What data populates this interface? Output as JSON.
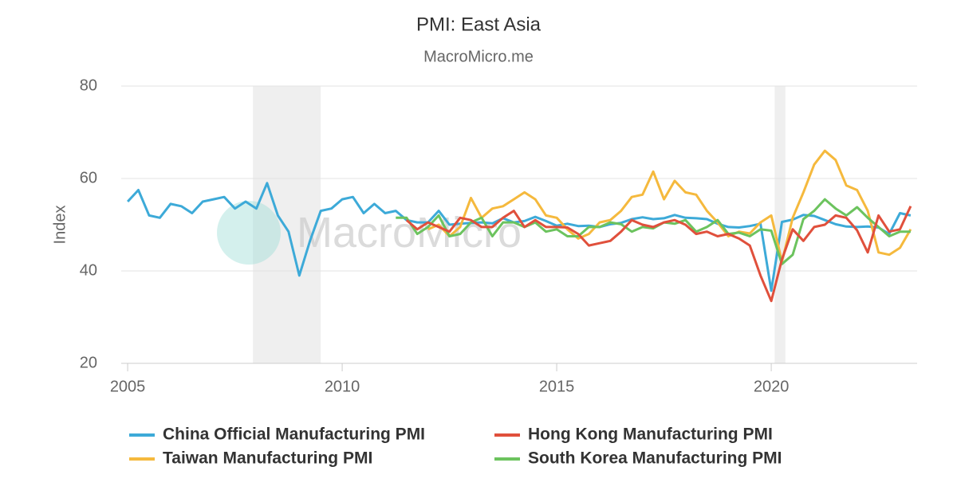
{
  "chart_data": {
    "type": "line",
    "title": "PMI: East Asia",
    "subtitle": "MacroMicro.me",
    "watermark": "MacroMicro",
    "y_label": "Index",
    "xlim": [
      2004.85,
      2023.4
    ],
    "ylim": [
      20,
      80
    ],
    "xticks": [
      2005,
      2010,
      2015,
      2020
    ],
    "yticks": [
      20,
      40,
      60,
      80
    ],
    "grid": true,
    "recessions": [
      [
        2007.92,
        2009.5
      ],
      [
        2020.08,
        2020.33
      ]
    ],
    "x": [
      2005,
      2005.25,
      2005.5,
      2005.75,
      2006,
      2006.25,
      2006.5,
      2006.75,
      2007,
      2007.25,
      2007.5,
      2007.75,
      2008,
      2008.25,
      2008.5,
      2008.75,
      2009,
      2009.25,
      2009.5,
      2009.75,
      2010,
      2010.25,
      2010.5,
      2010.75,
      2011,
      2011.25,
      2011.5,
      2011.75,
      2012,
      2012.25,
      2012.5,
      2012.75,
      2013,
      2013.25,
      2013.5,
      2013.75,
      2014,
      2014.25,
      2014.5,
      2014.75,
      2015,
      2015.25,
      2015.5,
      2015.75,
      2016,
      2016.25,
      2016.5,
      2016.75,
      2017,
      2017.25,
      2017.5,
      2017.75,
      2018,
      2018.25,
      2018.5,
      2018.75,
      2019,
      2019.25,
      2019.5,
      2019.75,
      2020,
      2020.25,
      2020.5,
      2020.75,
      2021,
      2021.25,
      2021.5,
      2021.75,
      2022,
      2022.25,
      2022.5,
      2022.75,
      2023,
      2023.25
    ],
    "series": [
      {
        "name": "China Official Manufacturing PMI",
        "color": "#3daad8",
        "values": [
          55,
          57.5,
          52,
          51.5,
          54.5,
          54,
          52.5,
          55,
          55.5,
          56,
          53.5,
          55,
          53.5,
          59,
          52,
          48.5,
          39,
          46.5,
          53,
          53.5,
          55.5,
          56,
          52.5,
          54.5,
          52.5,
          53,
          51,
          50.5,
          50.5,
          53,
          50,
          50.2,
          50.4,
          50.5,
          50.3,
          51.4,
          50.5,
          50.8,
          51.7,
          50.8,
          49.8,
          50.2,
          49.7,
          49.8,
          49.5,
          50.1,
          50.4,
          51.2,
          51.6,
          51.2,
          51.4,
          52.1,
          51.5,
          51.4,
          51.2,
          50.2,
          49.5,
          49.4,
          49.7,
          50.2,
          35.7,
          50.6,
          51.1,
          52.1,
          51.9,
          51,
          50.1,
          49.6,
          49.5,
          49.6,
          49.4,
          48,
          52.5,
          52
        ]
      },
      {
        "name": "Hong Kong Manufacturing PMI",
        "color": "#e0503c",
        "values": [
          null,
          null,
          null,
          null,
          null,
          null,
          null,
          null,
          null,
          null,
          null,
          null,
          null,
          null,
          null,
          null,
          null,
          null,
          null,
          null,
          null,
          null,
          null,
          null,
          null,
          null,
          51,
          49,
          50.5,
          49.5,
          48.5,
          51.5,
          51,
          49.5,
          49.5,
          51.5,
          53,
          49.5,
          51,
          49.5,
          49.5,
          49.4,
          48,
          45.5,
          46,
          46.5,
          48.5,
          51,
          50,
          49.5,
          50.5,
          51,
          50,
          48,
          48.5,
          47.5,
          48,
          47,
          45.5,
          39,
          33.5,
          42.5,
          49,
          46.5,
          49.5,
          50,
          52,
          51.5,
          48.8,
          44,
          52,
          48.5,
          49,
          54
        ]
      },
      {
        "name": "Taiwan Manufacturing PMI",
        "color": "#f5b93d",
        "values": [
          null,
          null,
          null,
          null,
          null,
          null,
          null,
          null,
          null,
          null,
          null,
          null,
          null,
          null,
          null,
          null,
          null,
          null,
          null,
          null,
          null,
          null,
          null,
          null,
          null,
          null,
          null,
          null,
          49,
          50,
          47.5,
          49.5,
          55.8,
          51.5,
          53.5,
          54,
          55.5,
          57,
          55.5,
          52,
          51.5,
          49,
          47,
          48,
          50.5,
          51,
          53,
          56,
          56.5,
          61.5,
          55.5,
          59.5,
          57,
          56.5,
          53,
          50.5,
          47.5,
          48.5,
          48.1,
          50.5,
          52,
          42,
          51.5,
          57,
          63,
          66,
          64,
          58.5,
          57.5,
          53,
          44,
          43.5,
          45,
          49
        ]
      },
      {
        "name": "South Korea Manufacturing PMI",
        "color": "#6cc35e",
        "values": [
          null,
          null,
          null,
          null,
          null,
          null,
          null,
          null,
          null,
          null,
          null,
          null,
          null,
          null,
          null,
          null,
          null,
          null,
          null,
          null,
          null,
          null,
          null,
          null,
          null,
          51.5,
          51.5,
          48,
          49.5,
          52,
          47.5,
          48,
          50.5,
          51.5,
          47.5,
          50.5,
          50.5,
          49.5,
          50.5,
          48.5,
          49,
          47.5,
          47.5,
          49.5,
          49.5,
          50.5,
          50.1,
          48.5,
          49.5,
          49.2,
          50.5,
          50.2,
          51,
          48.5,
          49.5,
          51,
          48,
          48.3,
          47.5,
          49,
          48.7,
          41.5,
          43.5,
          51.2,
          53,
          55.5,
          53.5,
          52,
          53.8,
          51.5,
          49.5,
          47.5,
          48.5,
          48.5
        ]
      }
    ]
  }
}
